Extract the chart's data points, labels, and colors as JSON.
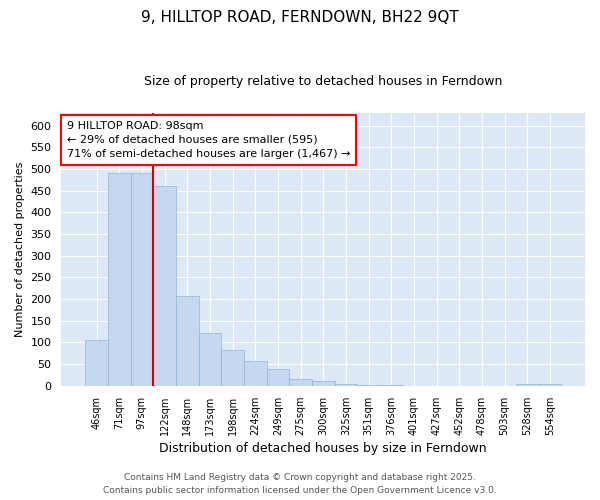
{
  "title": "9, HILLTOP ROAD, FERNDOWN, BH22 9QT",
  "subtitle": "Size of property relative to detached houses in Ferndown",
  "xlabel": "Distribution of detached houses by size in Ferndown",
  "ylabel": "Number of detached properties",
  "footer": "Contains HM Land Registry data © Crown copyright and database right 2025.\nContains public sector information licensed under the Open Government Licence v3.0.",
  "annotation_title": "9 HILLTOP ROAD: 98sqm",
  "annotation_line1": "← 29% of detached houses are smaller (595)",
  "annotation_line2": "71% of semi-detached houses are larger (1,467) →",
  "bar_color": "#c5d8f0",
  "bar_edge_color": "#91b4d9",
  "marker_color": "#cc0000",
  "plot_bg_color": "#dce8f5",
  "fig_bg_color": "#ffffff",
  "grid_color": "#ffffff",
  "categories": [
    "46sqm",
    "71sqm",
    "97sqm",
    "122sqm",
    "148sqm",
    "173sqm",
    "198sqm",
    "224sqm",
    "249sqm",
    "275sqm",
    "300sqm",
    "325sqm",
    "351sqm",
    "376sqm",
    "401sqm",
    "427sqm",
    "452sqm",
    "478sqm",
    "503sqm",
    "528sqm",
    "554sqm"
  ],
  "values": [
    105,
    490,
    490,
    460,
    208,
    122,
    82,
    57,
    38,
    15,
    10,
    5,
    1,
    1,
    0,
    0,
    0,
    0,
    0,
    5,
    5
  ],
  "marker_bin": 2,
  "ylim": [
    0,
    630
  ],
  "yticks": [
    0,
    50,
    100,
    150,
    200,
    250,
    300,
    350,
    400,
    450,
    500,
    550,
    600
  ]
}
